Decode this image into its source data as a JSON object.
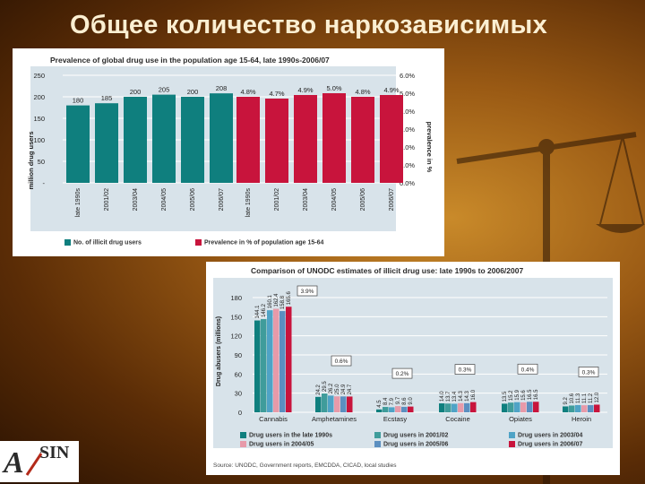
{
  "slide": {
    "title": "Общее количество наркозависимых"
  },
  "colors": {
    "teal": "#0f7f7e",
    "red": "#c8143c",
    "gray_grid": "#ffffff",
    "c2003": "#4fa3c6",
    "c2004": "#e79aa9",
    "c2005": "#5b8fc0"
  },
  "logo": {
    "text_a": "A",
    "text_b": "SIN"
  },
  "chart_data": [
    {
      "type": "bar",
      "title": "Prevalence of global drug use in the population age 15-64, late 1990s-2006/07",
      "ylabel_left": "million drug users",
      "ylabel_right": "prevalence in %",
      "ylim_left": [
        0,
        250
      ],
      "ylim_right": [
        0,
        6
      ],
      "yticks_left": [
        "250",
        "200",
        "150",
        "100",
        "50",
        "-"
      ],
      "yticks_right": [
        "6.0%",
        "5.0%",
        "4.0%",
        "3.0%",
        "2.0%",
        "1.0%",
        "0.0%"
      ],
      "categories": [
        "late 1990s",
        "2001/02",
        "2003/04",
        "2004/05",
        "2005/06",
        "2006/07"
      ],
      "series": [
        {
          "name": "No. of illicit drug users",
          "values": [
            180,
            185,
            200,
            205,
            200,
            208
          ],
          "labels": [
            "180",
            "185",
            "200",
            "205",
            "200",
            "208"
          ]
        },
        {
          "name": "Prevalence in % of population age 15-64",
          "values": [
            4.8,
            4.7,
            4.9,
            5.0,
            4.8,
            4.9
          ],
          "labels": [
            "4.8%",
            "4.7%",
            "4.9%",
            "5.0%",
            "4.8%",
            "4.9%"
          ]
        }
      ]
    },
    {
      "type": "bar",
      "title": "Comparison of UNODC estimates of illicit drug use: late 1990s to 2006/2007",
      "ylabel": "Drug abusers (millions)",
      "ylim": [
        0,
        180
      ],
      "yticks": [
        "180",
        "150",
        "120",
        "90",
        "60",
        "30",
        "0"
      ],
      "categories": [
        "Cannabis",
        "Amphetamines",
        "Ecstasy",
        "Cocaine",
        "Opiates",
        "Heroin"
      ],
      "category_notes": [
        "3.9%",
        "0.6%",
        "0.2%",
        "0.3%",
        "0.4%",
        "0.3%"
      ],
      "series": [
        {
          "name": "Drug users in the late 1990s",
          "values": [
            144.1,
            24.2,
            4.5,
            14.0,
            13.5,
            9.2
          ]
        },
        {
          "name": "Drug users in 2001/02",
          "values": [
            146.2,
            29.5,
            8.4,
            13.7,
            15.2,
            10.6
          ]
        },
        {
          "name": "Drug users in 2003/04",
          "values": [
            160.1,
            26.2,
            7.9,
            13.4,
            15.9,
            11.3
          ]
        },
        {
          "name": "Drug users in 2004/05",
          "values": [
            162.4,
            25.0,
            9.7,
            14.3,
            15.6,
            11.1
          ]
        },
        {
          "name": "Drug users in 2005/06",
          "values": [
            158.8,
            24.9,
            8.6,
            14.3,
            16.5,
            11.2
          ]
        },
        {
          "name": "Drug users in 2006/07",
          "values": [
            165.6,
            24.7,
            9.0,
            16.0,
            16.5,
            12.0
          ]
        }
      ],
      "value_labels": [
        [
          "144.1",
          "146.2",
          "160.1",
          "162.4",
          "158.8",
          "165.6"
        ],
        [
          "24.2",
          "29.5",
          "26.2",
          "25.0",
          "24.9",
          "24.7"
        ],
        [
          "4.5",
          "8.4",
          "7.9",
          "9.7",
          "8.6",
          "9.0"
        ],
        [
          "14.0",
          "13.7",
          "13.4",
          "14.3",
          "14.3",
          "16.0"
        ],
        [
          "13.5",
          "15.2",
          "15.9",
          "15.6",
          "16.5",
          "16.5"
        ],
        [
          "9.2",
          "10.6",
          "11.3",
          "11.1",
          "11.2",
          "12.0"
        ]
      ],
      "source": "Source: UNODC, Government reports, EMCDDA, CICAD, local studies"
    }
  ]
}
